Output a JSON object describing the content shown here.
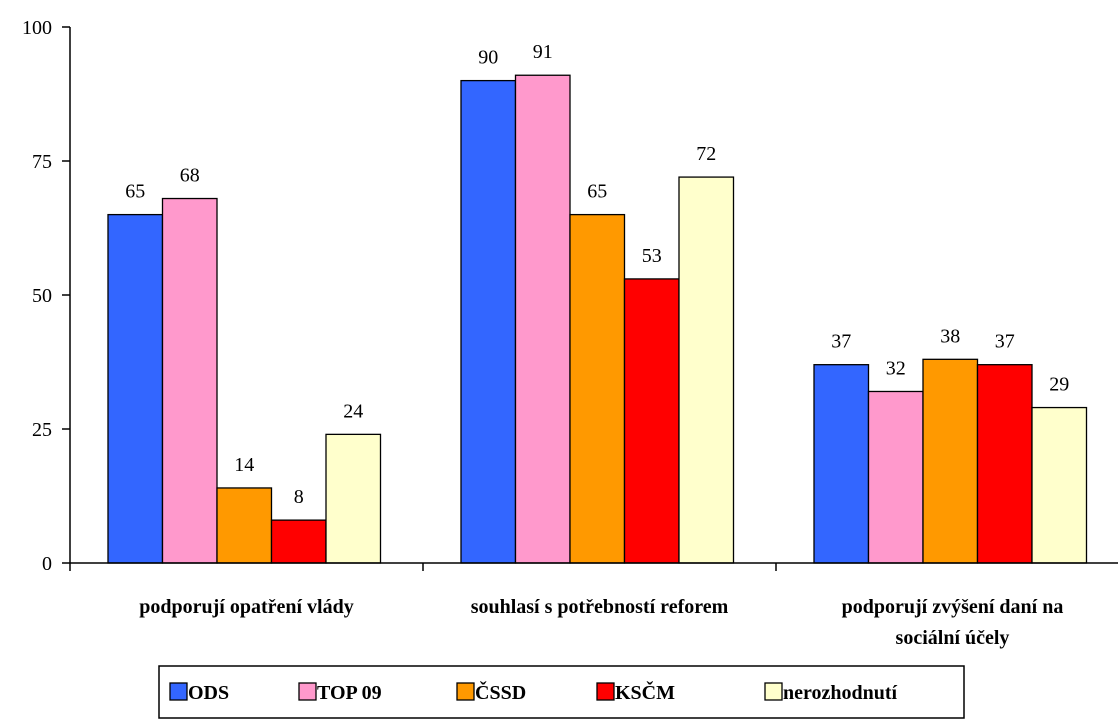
{
  "chart_data": {
    "type": "bar",
    "categories": [
      [
        "podporují opatření vlády"
      ],
      [
        "souhlasí s potřebností reforem"
      ],
      [
        "podporují zvýšení daní na",
        "sociální účely"
      ]
    ],
    "series": [
      {
        "name": "ODS",
        "color": "#3366FF",
        "values": [
          65,
          90,
          37
        ]
      },
      {
        "name": "TOP 09",
        "color": "#FF99CC",
        "values": [
          68,
          91,
          32
        ]
      },
      {
        "name": "ČSSD",
        "color": "#FF9900",
        "values": [
          14,
          65,
          38
        ]
      },
      {
        "name": "KSČM",
        "color": "#FF0000",
        "values": [
          8,
          53,
          37
        ]
      },
      {
        "name": "nerozhodnutí",
        "color": "#FFFFCC",
        "values": [
          24,
          72,
          29
        ]
      }
    ],
    "ylim": [
      0,
      100
    ],
    "yticks": [
      0,
      25,
      50,
      75,
      100
    ],
    "grid": false,
    "legend_position": "bottom",
    "title": "",
    "xlabel": "",
    "ylabel": ""
  }
}
